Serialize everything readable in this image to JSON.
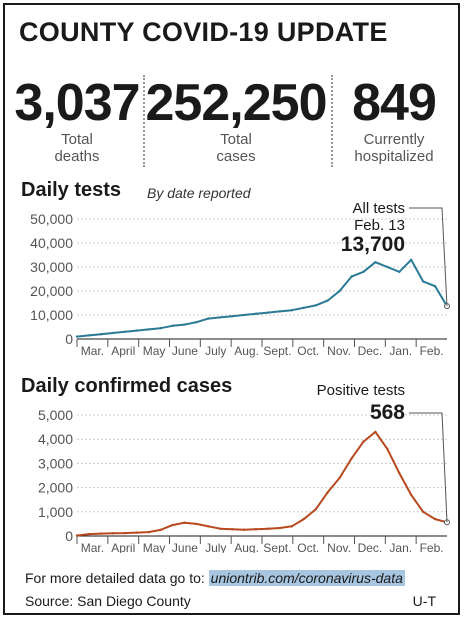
{
  "headline": "COUNTY COVID-19 UPDATE",
  "stats": [
    {
      "value": "3,037",
      "label_line1": "Total",
      "label_line2": "deaths"
    },
    {
      "value": "252,250",
      "label_line1": "Total",
      "label_line2": "cases"
    },
    {
      "value": "849",
      "label_line1": "Currently",
      "label_line2": "hospitalized"
    }
  ],
  "colors": {
    "tests": "#2a7a96",
    "cases": "#b8481e",
    "text": "#1a1a1a",
    "grid": "#cccccc",
    "link_bg": "#a8c6e0"
  },
  "chart_data": [
    {
      "type": "line",
      "title": "Daily tests",
      "subtitle": "By date reported",
      "x_labels": [
        "Mar.",
        "April",
        "May",
        "June",
        "July",
        "Aug.",
        "Sept.",
        "Oct.",
        "Nov.",
        "Dec.",
        "Jan.",
        "Feb."
      ],
      "ylim": [
        0,
        50000
      ],
      "y_ticks": [
        "0",
        "10,000",
        "20,000",
        "30,000",
        "40,000",
        "50,000"
      ],
      "grid": true,
      "annotation": {
        "line1": "All tests",
        "line2": "Feb. 13",
        "value": "13,700"
      },
      "series": [
        {
          "values": [
            1000,
            1500,
            2000,
            2500,
            3000,
            3500,
            4000,
            4500,
            5500,
            6000,
            7000,
            8500,
            9000,
            9500,
            10000,
            10500,
            11000,
            11500,
            12000,
            13000,
            14000,
            16000,
            20000,
            26000,
            28000,
            32000,
            30000,
            28000,
            33000,
            24000,
            22000,
            13700
          ]
        }
      ]
    },
    {
      "type": "line",
      "title": "Daily confirmed cases",
      "x_labels": [
        "Mar.",
        "April",
        "May",
        "June",
        "July",
        "Aug.",
        "Sept.",
        "Oct.",
        "Nov.",
        "Dec.",
        "Jan.",
        "Feb."
      ],
      "ylim": [
        0,
        5000
      ],
      "y_ticks": [
        "0",
        "1,000",
        "2,000",
        "3,000",
        "4,000",
        "5,000"
      ],
      "grid": true,
      "annotation": {
        "line1": "Positive tests",
        "value": "568"
      },
      "series": [
        {
          "values": [
            20,
            80,
            100,
            110,
            120,
            140,
            160,
            250,
            450,
            550,
            500,
            400,
            300,
            280,
            260,
            280,
            300,
            330,
            400,
            700,
            1100,
            1800,
            2400,
            3200,
            3900,
            4300,
            3600,
            2600,
            1700,
            1000,
            700,
            568
          ]
        }
      ]
    }
  ],
  "footer": {
    "lead": "For more detailed data go to: ",
    "link": "uniontrib.com/coronavirus-data",
    "source": "Source: San Diego County",
    "credit": "U-T"
  }
}
